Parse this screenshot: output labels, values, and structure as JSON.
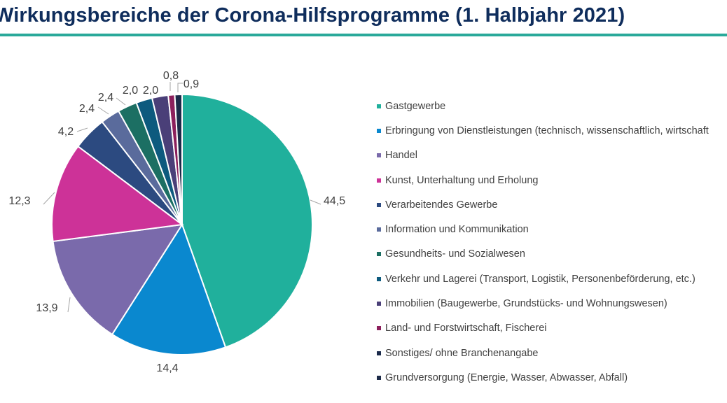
{
  "chart_data": {
    "type": "pie",
    "title": "Wirkungsbereiche der Corona-Hilfsprogramme (1. Halbjahr 2021)",
    "start_angle": "12 o'clock",
    "direction": "clockwise",
    "legend_position": "right",
    "slices": [
      {
        "label": "Gastgewerbe",
        "value": 44.5,
        "display": "44,5",
        "color": "#20b09c"
      },
      {
        "label": "Erbringung von Dienstleistungen (technisch, wissenschaftlich, wirtschaft",
        "value": 14.4,
        "display": "14,4",
        "color": "#0a88cf"
      },
      {
        "label": "Handel",
        "value": 13.9,
        "display": "13,9",
        "color": "#7a6aab"
      },
      {
        "label": "Kunst, Unterhaltung und Erholung",
        "value": 12.3,
        "display": "12,3",
        "color": "#cd3298"
      },
      {
        "label": "Verarbeitendes Gewerbe",
        "value": 4.2,
        "display": "4,2",
        "color": "#2c4a80"
      },
      {
        "label": "Information und Kommunikation",
        "value": 2.4,
        "display": "2,4",
        "color": "#5a6b9c"
      },
      {
        "label": "Gesundheits- und Sozialwesen",
        "value": 2.4,
        "display": "2,4",
        "color": "#1c6f63"
      },
      {
        "label": "Verkehr und Lagerei (Transport, Logistik, Personenbeförderung, etc.)",
        "value": 2.0,
        "display": "2,0",
        "color": "#0d5a7e"
      },
      {
        "label": "Immobilien (Baugewerbe, Grundstücks- und Wohnungswesen)",
        "value": 2.0,
        "display": "2,0",
        "color": "#4a3f78"
      },
      {
        "label": "Land- und Forstwirtschaft, Fischerei",
        "value": 0.8,
        "display": "0,8",
        "color": "#8c1f5c"
      },
      {
        "label": "Sonstiges/ ohne Branchenangabe",
        "value": 0.0,
        "display": "",
        "color": "#1a2a4a"
      },
      {
        "label": "Grundversorgung (Energie, Wasser, Abwasser, Abfall)",
        "value": 0.9,
        "display": "0,9",
        "color": "#1c2a48"
      }
    ]
  }
}
